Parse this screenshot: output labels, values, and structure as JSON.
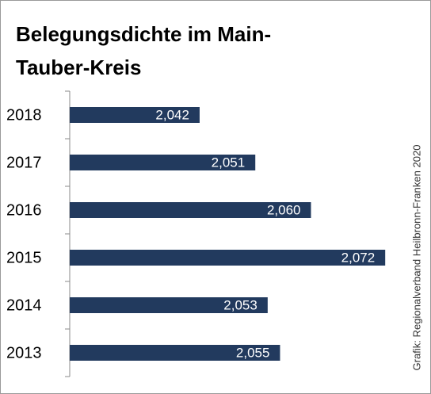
{
  "chart_data": {
    "type": "barh",
    "title": "Belegungsdichte im Main-Tauber-Kreis",
    "source": "Grafik: Regionalverband Heilbronn-Franken 2020",
    "categories": [
      "2018",
      "2017",
      "2016",
      "2015",
      "2014",
      "2013"
    ],
    "values": [
      2.042,
      2.051,
      2.06,
      2.072,
      2.053,
      2.055
    ],
    "value_labels": [
      "2,042",
      "2,051",
      "2,060",
      "2,072",
      "2,053",
      "2,055"
    ],
    "color": "#223a5e",
    "xlim": [
      2.021,
      2.073
    ]
  }
}
